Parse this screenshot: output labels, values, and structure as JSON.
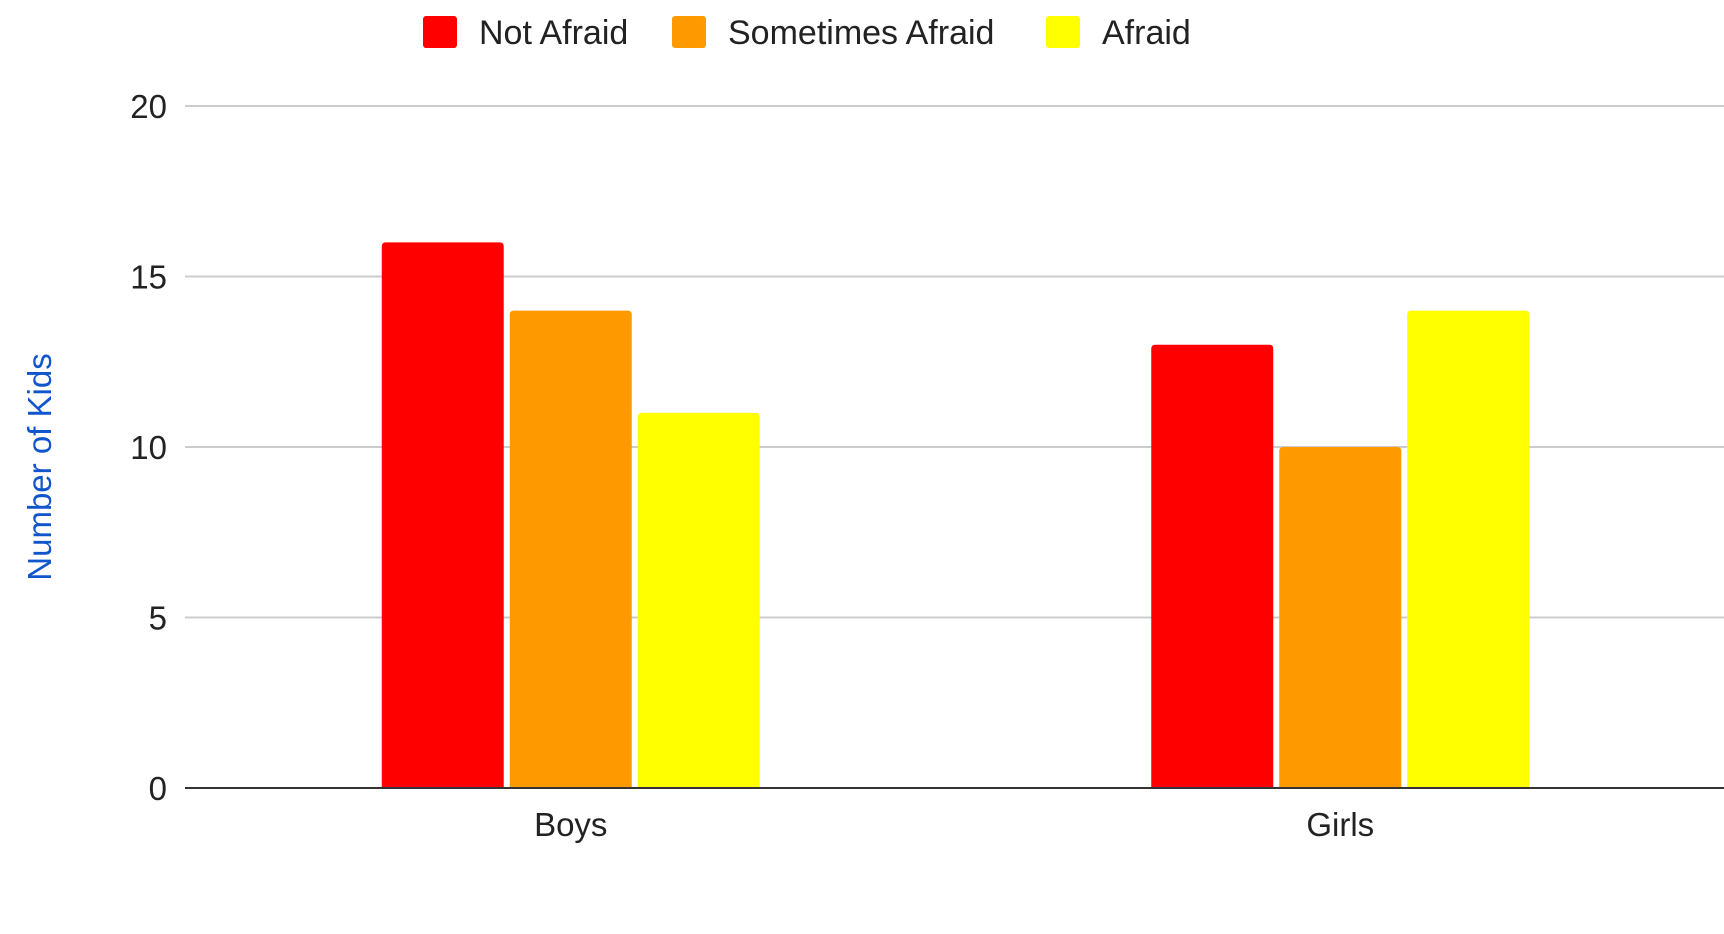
{
  "chart_data": {
    "type": "bar",
    "title": "",
    "xlabel": "",
    "ylabel": "Number of Kids",
    "ylabel_color": "#1155cc",
    "categories": [
      "Boys",
      "Girls"
    ],
    "series": [
      {
        "name": "Not Afraid",
        "color": "#ff0000",
        "values": [
          16,
          13
        ]
      },
      {
        "name": "Sometimes Afraid",
        "color": "#ff9900",
        "values": [
          14,
          10
        ]
      },
      {
        "name": "Afraid",
        "color": "#ffff00",
        "values": [
          11,
          14
        ]
      }
    ],
    "ylim": [
      0,
      20
    ],
    "yticks": [
      0,
      5,
      10,
      15,
      20
    ],
    "grid": true,
    "grid_color": "#cccccc",
    "legend": "top-center"
  }
}
